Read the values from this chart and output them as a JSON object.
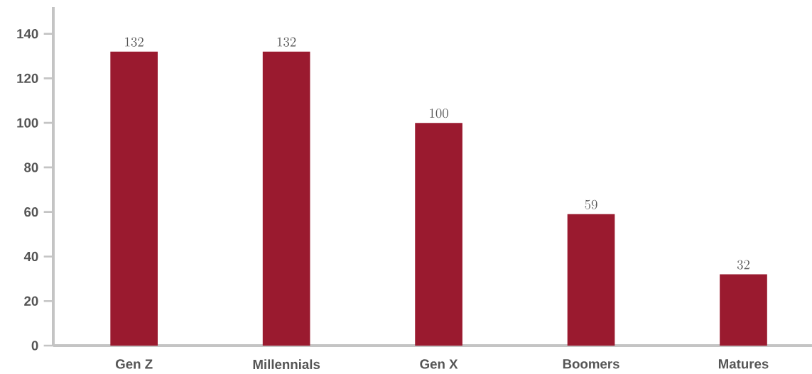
{
  "chart_data": {
    "type": "bar",
    "categories": [
      "Gen Z",
      "Millennials",
      "Gen X",
      "Boomers",
      "Matures"
    ],
    "values": [
      132,
      132,
      100,
      59,
      32
    ],
    "color": "#9a1a2f",
    "ylim": [
      0,
      152
    ],
    "yticks": [
      0,
      20,
      40,
      60,
      80,
      100,
      120,
      140
    ],
    "data_labels": true
  }
}
